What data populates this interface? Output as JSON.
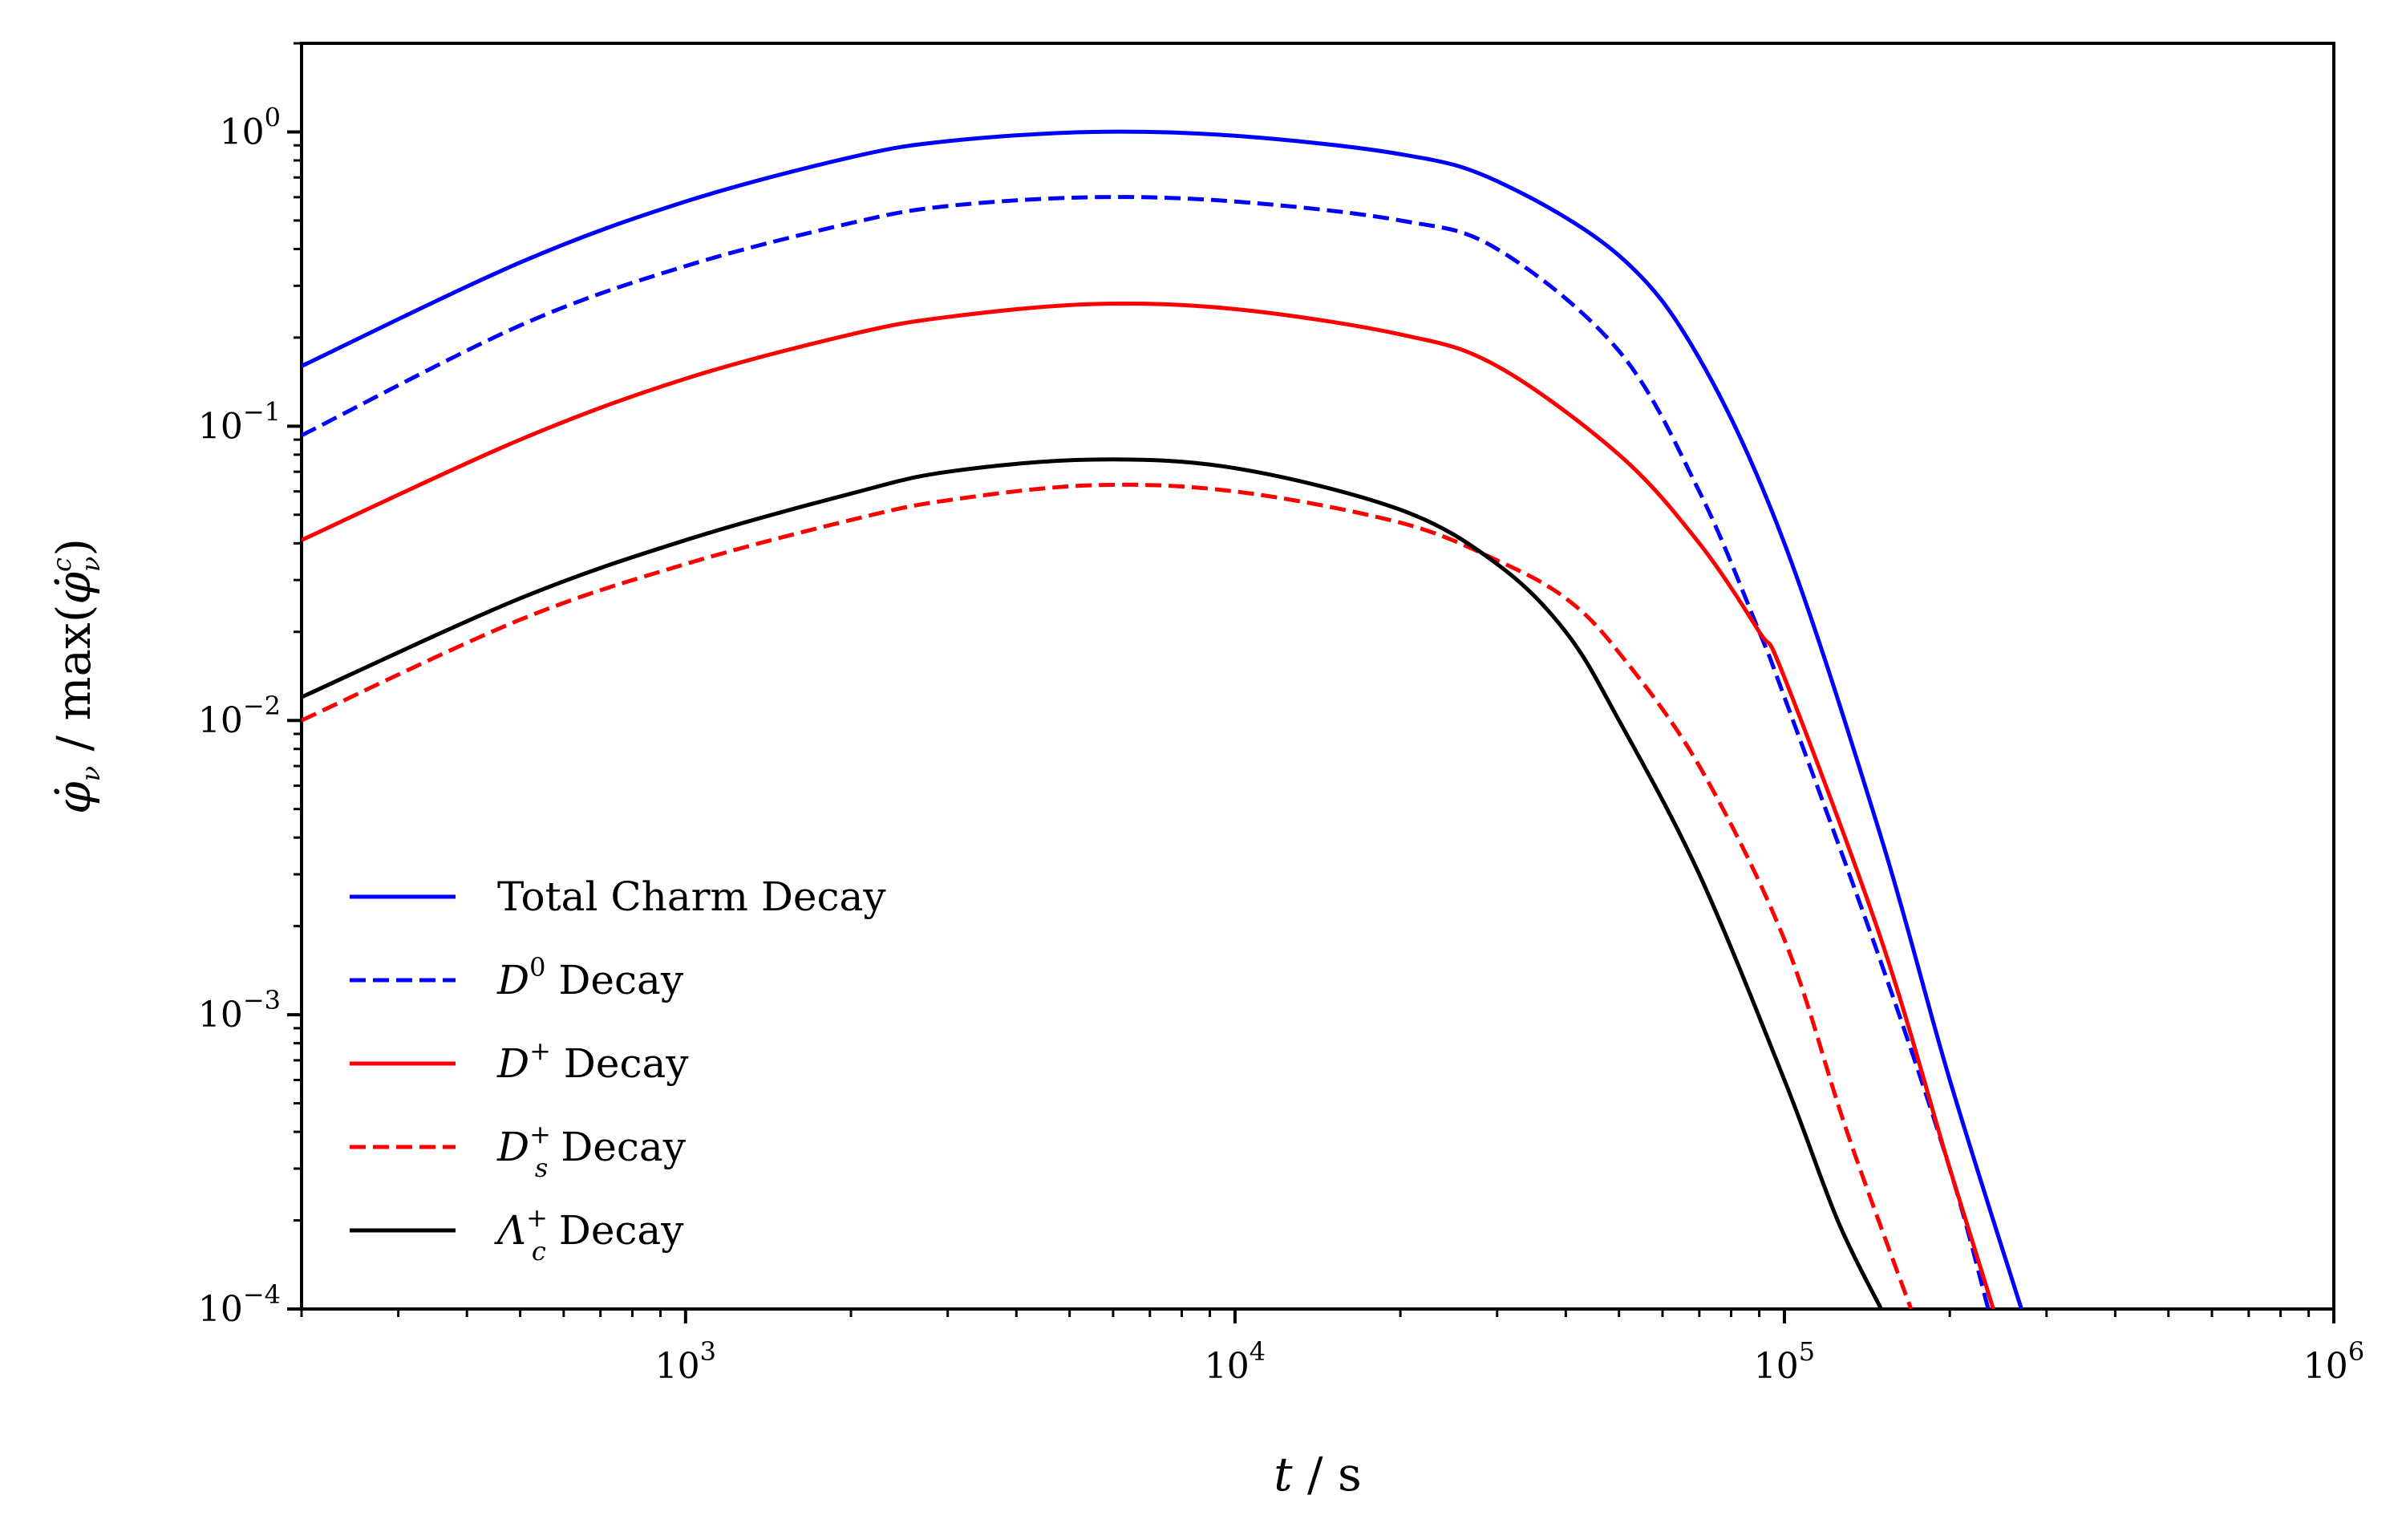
{
  "chart_data": {
    "type": "line",
    "xscale": "log",
    "yscale": "log",
    "xlim": [
      200,
      1000000
    ],
    "ylim": [
      0.0001,
      2
    ],
    "xlabel": {
      "main": "t",
      "unit": " / s"
    },
    "ylabel": {
      "main": "φ̇",
      "sub": "ν",
      "mid": " / max(",
      "main2": "φ̇",
      "sup2": "c",
      "sub2": "ν",
      "end": ")"
    },
    "x_ticks": [
      {
        "value": 1000,
        "base": "10",
        "exp": "3"
      },
      {
        "value": 10000,
        "base": "10",
        "exp": "4"
      },
      {
        "value": 100000,
        "base": "10",
        "exp": "5"
      },
      {
        "value": 1000000,
        "base": "10",
        "exp": "6"
      }
    ],
    "y_ticks": [
      {
        "value": 1,
        "base": "10",
        "exp": "0"
      },
      {
        "value": 0.1,
        "base": "10",
        "exp": "−1"
      },
      {
        "value": 0.01,
        "base": "10",
        "exp": "−2"
      },
      {
        "value": 0.001,
        "base": "10",
        "exp": "−3"
      },
      {
        "value": 0.0001,
        "base": "10",
        "exp": "−4"
      }
    ],
    "grid": false,
    "legend_position": "lower-left",
    "series": [
      {
        "name": "Total Charm Decay",
        "label_main": "Total Charm Decay",
        "label_sup": "",
        "label_sub": "",
        "label_rest": "",
        "color": "#0000ff",
        "dashed": false,
        "x": [
          200,
          500,
          1000,
          2000,
          3000,
          5500,
          10000,
          20000,
          30000,
          50000,
          70000,
          100000,
          150000,
          200000,
          270000
        ],
        "y": [
          0.16,
          0.36,
          0.58,
          0.82,
          0.93,
          1.0,
          0.97,
          0.84,
          0.68,
          0.38,
          0.17,
          0.04,
          0.004,
          0.0006,
          0.0001
        ]
      },
      {
        "name": "D0 Decay",
        "label_main": "D",
        "label_sup": "0",
        "label_sub": "",
        "label_rest": " Decay",
        "color": "#0000ff",
        "dashed": true,
        "x": [
          200,
          500,
          1000,
          2000,
          3000,
          5500,
          10000,
          20000,
          30000,
          50000,
          70000,
          90000,
          100000,
          150000,
          200000,
          235000
        ],
        "y": [
          0.093,
          0.22,
          0.35,
          0.49,
          0.56,
          0.6,
          0.58,
          0.5,
          0.4,
          0.18,
          0.06,
          0.02,
          0.012,
          0.0015,
          0.0003,
          0.0001
        ]
      },
      {
        "name": "D+ Decay",
        "label_main": "D",
        "label_sup": "+",
        "label_sub": "",
        "label_rest": " Decay",
        "color": "#ff0000",
        "dashed": false,
        "x": [
          200,
          500,
          1000,
          2000,
          3000,
          5500,
          10000,
          20000,
          30000,
          50000,
          70000,
          90000,
          100000,
          150000,
          200000,
          240000
        ],
        "y": [
          0.041,
          0.09,
          0.145,
          0.205,
          0.235,
          0.26,
          0.25,
          0.205,
          0.16,
          0.08,
          0.04,
          0.02,
          0.014,
          0.0018,
          0.0003,
          0.0001
        ]
      },
      {
        "name": "Ds+ Decay",
        "label_main": "D",
        "label_sup": "+",
        "label_sub": "s",
        "label_rest": " Decay",
        "color": "#ff0000",
        "dashed": true,
        "x": [
          200,
          500,
          1000,
          2000,
          3000,
          5500,
          10000,
          20000,
          30000,
          40000,
          50000,
          70000,
          100000,
          130000,
          170000
        ],
        "y": [
          0.01,
          0.022,
          0.034,
          0.048,
          0.056,
          0.063,
          0.06,
          0.047,
          0.035,
          0.026,
          0.017,
          0.007,
          0.0018,
          0.0004,
          0.0001
        ]
      },
      {
        "name": "Λc+ Decay",
        "label_main": "Λ",
        "label_sup": "+",
        "label_sub": "c",
        "label_rest": " Decay",
        "color": "#000000",
        "dashed": false,
        "x": [
          200,
          500,
          1000,
          2000,
          3000,
          5500,
          10000,
          20000,
          30000,
          40000,
          50000,
          70000,
          100000,
          125000,
          150000
        ],
        "y": [
          0.012,
          0.026,
          0.041,
          0.059,
          0.07,
          0.077,
          0.072,
          0.052,
          0.034,
          0.02,
          0.01,
          0.003,
          0.0006,
          0.0002,
          0.0001
        ]
      }
    ]
  }
}
